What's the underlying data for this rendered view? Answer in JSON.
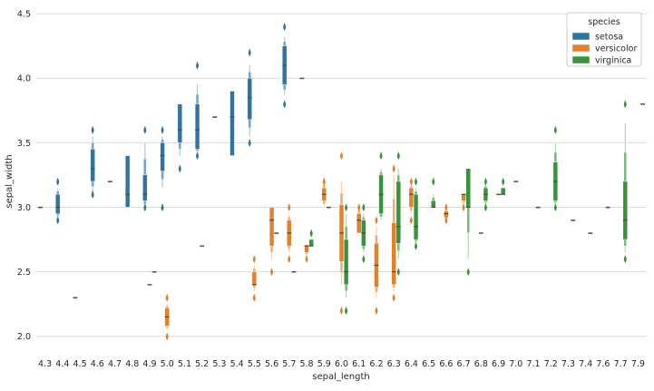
{
  "chart_data": {
    "type": "boxen",
    "xlabel": "sepal_length",
    "ylabel": "sepal_width",
    "ylim": [
      1.85,
      4.55
    ],
    "yticks": [
      2.0,
      2.5,
      3.0,
      3.5,
      4.0,
      4.5
    ],
    "grid": true,
    "legend": {
      "title": "species",
      "placement": "top-right"
    },
    "categories": [
      "4.3",
      "4.4",
      "4.5",
      "4.6",
      "4.7",
      "4.8",
      "4.9",
      "5.0",
      "5.1",
      "5.2",
      "5.3",
      "5.4",
      "5.5",
      "5.6",
      "5.7",
      "5.8",
      "5.9",
      "6.0",
      "6.1",
      "6.2",
      "6.3",
      "6.4",
      "6.5",
      "6.6",
      "6.7",
      "6.8",
      "6.9",
      "7.0",
      "7.1",
      "7.2",
      "7.3",
      "7.4",
      "7.6",
      "7.7",
      "7.9"
    ],
    "series": [
      {
        "name": "setosa",
        "color": "#3274a1",
        "data": [
          {
            "x": "4.3",
            "median": 3.0,
            "q1": 3.0,
            "q3": 3.0,
            "lo": 3.0,
            "hi": 3.0,
            "outliers": []
          },
          {
            "x": "4.4",
            "median": 3.0,
            "q1": 2.95,
            "q3": 3.1,
            "lo": 2.92,
            "hi": 3.15,
            "outliers": [
              2.9,
              3.2
            ]
          },
          {
            "x": "4.5",
            "median": 2.3,
            "q1": 2.3,
            "q3": 2.3,
            "lo": 2.3,
            "hi": 2.3,
            "outliers": []
          },
          {
            "x": "4.6",
            "median": 3.3,
            "q1": 3.2,
            "q3": 3.45,
            "lo": 3.12,
            "hi": 3.55,
            "outliers": [
              3.1,
              3.6
            ]
          },
          {
            "x": "4.7",
            "median": 3.2,
            "q1": 3.2,
            "q3": 3.2,
            "lo": 3.2,
            "hi": 3.2,
            "outliers": []
          },
          {
            "x": "4.8",
            "median": 3.1,
            "q1": 3.0,
            "q3": 3.4,
            "lo": 3.0,
            "hi": 3.4,
            "outliers": []
          },
          {
            "x": "4.9",
            "median": 3.1,
            "q1": 3.05,
            "q3": 3.25,
            "lo": 3.0,
            "hi": 3.5,
            "outliers": [
              3.0,
              3.6
            ]
          },
          {
            "x": "5.0",
            "median": 3.4,
            "q1": 3.28,
            "q3": 3.5,
            "lo": 3.15,
            "hi": 3.55,
            "outliers": [
              3.0,
              3.6
            ]
          },
          {
            "x": "5.1",
            "median": 3.6,
            "q1": 3.5,
            "q3": 3.8,
            "lo": 3.4,
            "hi": 3.8,
            "outliers": [
              3.3
            ]
          },
          {
            "x": "5.2",
            "median": 3.6,
            "q1": 3.45,
            "q3": 3.8,
            "lo": 3.42,
            "hi": 3.95,
            "outliers": [
              3.4,
              4.1
            ]
          },
          {
            "x": "5.3",
            "median": 3.7,
            "q1": 3.7,
            "q3": 3.7,
            "lo": 3.7,
            "hi": 3.7,
            "outliers": []
          },
          {
            "x": "5.4",
            "median": 3.7,
            "q1": 3.4,
            "q3": 3.9,
            "lo": 3.4,
            "hi": 3.9,
            "outliers": []
          },
          {
            "x": "5.5",
            "median": 3.85,
            "q1": 3.68,
            "q3": 4.0,
            "lo": 3.55,
            "hi": 4.1,
            "outliers": [
              3.5,
              4.2
            ]
          },
          {
            "x": "5.7",
            "median": 4.1,
            "q1": 3.95,
            "q3": 4.25,
            "lo": 3.87,
            "hi": 4.32,
            "outliers": [
              3.8,
              4.4
            ]
          },
          {
            "x": "5.8",
            "median": 4.0,
            "q1": 4.0,
            "q3": 4.0,
            "lo": 4.0,
            "hi": 4.0,
            "outliers": []
          }
        ]
      },
      {
        "name": "versicolor",
        "color": "#e1812c",
        "data": [
          {
            "x": "4.9",
            "median": 2.4,
            "q1": 2.4,
            "q3": 2.4,
            "lo": 2.4,
            "hi": 2.4,
            "outliers": []
          },
          {
            "x": "5.0",
            "median": 2.15,
            "q1": 2.08,
            "q3": 2.22,
            "lo": 2.05,
            "hi": 2.25,
            "outliers": [
              2.0,
              2.3
            ]
          },
          {
            "x": "5.2",
            "median": 2.7,
            "q1": 2.7,
            "q3": 2.7,
            "lo": 2.7,
            "hi": 2.7,
            "outliers": []
          },
          {
            "x": "5.5",
            "median": 2.4,
            "q1": 2.4,
            "q3": 2.5,
            "lo": 2.35,
            "hi": 2.55,
            "outliers": [
              2.3,
              2.6
            ]
          },
          {
            "x": "5.6",
            "median": 2.9,
            "q1": 2.7,
            "q3": 3.0,
            "lo": 2.6,
            "hi": 3.0,
            "outliers": [
              2.5
            ]
          },
          {
            "x": "5.7",
            "median": 2.8,
            "q1": 2.7,
            "q3": 2.9,
            "lo": 2.65,
            "hi": 2.95,
            "outliers": [
              2.6,
              3.0
            ]
          },
          {
            "x": "5.8",
            "median": 2.7,
            "q1": 2.65,
            "q3": 2.7,
            "lo": 2.62,
            "hi": 2.72,
            "outliers": [
              2.6
            ]
          },
          {
            "x": "5.9",
            "median": 3.1,
            "q1": 3.05,
            "q3": 3.15,
            "lo": 3.0,
            "hi": 3.2,
            "outliers": [
              3.2
            ]
          },
          {
            "x": "6.0",
            "median": 2.8,
            "q1": 2.58,
            "q3": 3.02,
            "lo": 2.4,
            "hi": 3.2,
            "outliers": [
              2.2,
              3.4
            ]
          },
          {
            "x": "6.1",
            "median": 2.9,
            "q1": 2.8,
            "q3": 2.95,
            "lo": 2.8,
            "hi": 3.0,
            "outliers": [
              3.0
            ]
          },
          {
            "x": "6.2",
            "median": 2.55,
            "q1": 2.38,
            "q3": 2.72,
            "lo": 2.3,
            "hi": 2.85,
            "outliers": [
              2.2,
              2.9
            ]
          },
          {
            "x": "6.3",
            "median": 2.5,
            "q1": 2.4,
            "q3": 2.88,
            "lo": 2.35,
            "hi": 3.25,
            "outliers": [
              2.3,
              3.3
            ]
          },
          {
            "x": "6.4",
            "median": 3.1,
            "q1": 3.0,
            "q3": 3.15,
            "lo": 2.95,
            "hi": 3.18,
            "outliers": [
              2.9,
              3.2
            ]
          },
          {
            "x": "6.6",
            "median": 2.95,
            "q1": 2.92,
            "q3": 2.97,
            "lo": 2.9,
            "hi": 2.98,
            "outliers": [
              2.9,
              3.0
            ]
          },
          {
            "x": "6.7",
            "median": 3.1,
            "q1": 3.05,
            "q3": 3.1,
            "lo": 3.02,
            "hi": 3.1,
            "outliers": [
              3.0
            ]
          },
          {
            "x": "6.8",
            "median": 2.8,
            "q1": 2.8,
            "q3": 2.8,
            "lo": 2.8,
            "hi": 2.8,
            "outliers": []
          },
          {
            "x": "6.9",
            "median": 3.1,
            "q1": 3.1,
            "q3": 3.1,
            "lo": 3.1,
            "hi": 3.1,
            "outliers": []
          },
          {
            "x": "7.0",
            "median": 3.2,
            "q1": 3.2,
            "q3": 3.2,
            "lo": 3.2,
            "hi": 3.2,
            "outliers": []
          }
        ]
      },
      {
        "name": "virginica",
        "color": "#3a923a",
        "data": [
          {
            "x": "4.9",
            "median": 2.5,
            "q1": 2.5,
            "q3": 2.5,
            "lo": 2.5,
            "hi": 2.5,
            "outliers": []
          },
          {
            "x": "5.6",
            "median": 2.8,
            "q1": 2.8,
            "q3": 2.8,
            "lo": 2.8,
            "hi": 2.8,
            "outliers": []
          },
          {
            "x": "5.7",
            "median": 2.5,
            "q1": 2.5,
            "q3": 2.5,
            "lo": 2.5,
            "hi": 2.5,
            "outliers": []
          },
          {
            "x": "5.8",
            "median": 2.7,
            "q1": 2.7,
            "q3": 2.75,
            "lo": 2.7,
            "hi": 2.75,
            "outliers": [
              2.8
            ]
          },
          {
            "x": "5.9",
            "median": 3.0,
            "q1": 3.0,
            "q3": 3.0,
            "lo": 3.0,
            "hi": 3.0,
            "outliers": []
          },
          {
            "x": "6.0",
            "median": 2.5,
            "q1": 2.4,
            "q3": 2.75,
            "lo": 2.3,
            "hi": 2.95,
            "outliers": [
              2.2,
              3.0
            ]
          },
          {
            "x": "6.1",
            "median": 2.8,
            "q1": 2.7,
            "q3": 2.9,
            "lo": 2.65,
            "hi": 2.95,
            "outliers": [
              2.6,
              3.0
            ]
          },
          {
            "x": "6.2",
            "median": 3.1,
            "q1": 2.95,
            "q3": 3.25,
            "lo": 2.9,
            "hi": 3.3,
            "outliers": [
              3.4
            ]
          },
          {
            "x": "6.3",
            "median": 2.85,
            "q1": 2.72,
            "q3": 3.2,
            "lo": 2.6,
            "hi": 3.3,
            "outliers": [
              2.5,
              3.4
            ]
          },
          {
            "x": "6.4",
            "median": 2.85,
            "q1": 2.75,
            "q3": 3.1,
            "lo": 2.72,
            "hi": 3.15,
            "outliers": [
              2.7,
              3.2
            ]
          },
          {
            "x": "6.5",
            "median": 3.0,
            "q1": 3.0,
            "q3": 3.05,
            "lo": 3.0,
            "hi": 3.1,
            "outliers": [
              3.2
            ]
          },
          {
            "x": "6.7",
            "median": 3.0,
            "q1": 3.0,
            "q3": 3.3,
            "lo": 2.6,
            "hi": 3.3,
            "outliers": [
              2.5
            ]
          },
          {
            "x": "6.8",
            "median": 3.1,
            "q1": 3.05,
            "q3": 3.15,
            "lo": 3.02,
            "hi": 3.18,
            "outliers": [
              3.0,
              3.2
            ]
          },
          {
            "x": "6.9",
            "median": 3.1,
            "q1": 3.1,
            "q3": 3.15,
            "lo": 3.1,
            "hi": 3.15,
            "outliers": [
              3.2
            ]
          },
          {
            "x": "7.1",
            "median": 3.0,
            "q1": 3.0,
            "q3": 3.0,
            "lo": 3.0,
            "hi": 3.0,
            "outliers": []
          },
          {
            "x": "7.2",
            "median": 3.2,
            "q1": 3.05,
            "q3": 3.35,
            "lo": 3.02,
            "hi": 3.5,
            "outliers": [
              3.0,
              3.6
            ]
          },
          {
            "x": "7.3",
            "median": 2.9,
            "q1": 2.9,
            "q3": 2.9,
            "lo": 2.9,
            "hi": 2.9,
            "outliers": []
          },
          {
            "x": "7.4",
            "median": 2.8,
            "q1": 2.8,
            "q3": 2.8,
            "lo": 2.8,
            "hi": 2.8,
            "outliers": []
          },
          {
            "x": "7.6",
            "median": 3.0,
            "q1": 3.0,
            "q3": 3.0,
            "lo": 3.0,
            "hi": 3.0,
            "outliers": []
          },
          {
            "x": "7.7",
            "median": 2.9,
            "q1": 2.75,
            "q3": 3.2,
            "lo": 2.65,
            "hi": 3.65,
            "outliers": [
              2.6,
              3.8
            ]
          },
          {
            "x": "7.9",
            "median": 3.8,
            "q1": 3.8,
            "q3": 3.8,
            "lo": 3.8,
            "hi": 3.8,
            "outliers": []
          }
        ]
      }
    ]
  }
}
